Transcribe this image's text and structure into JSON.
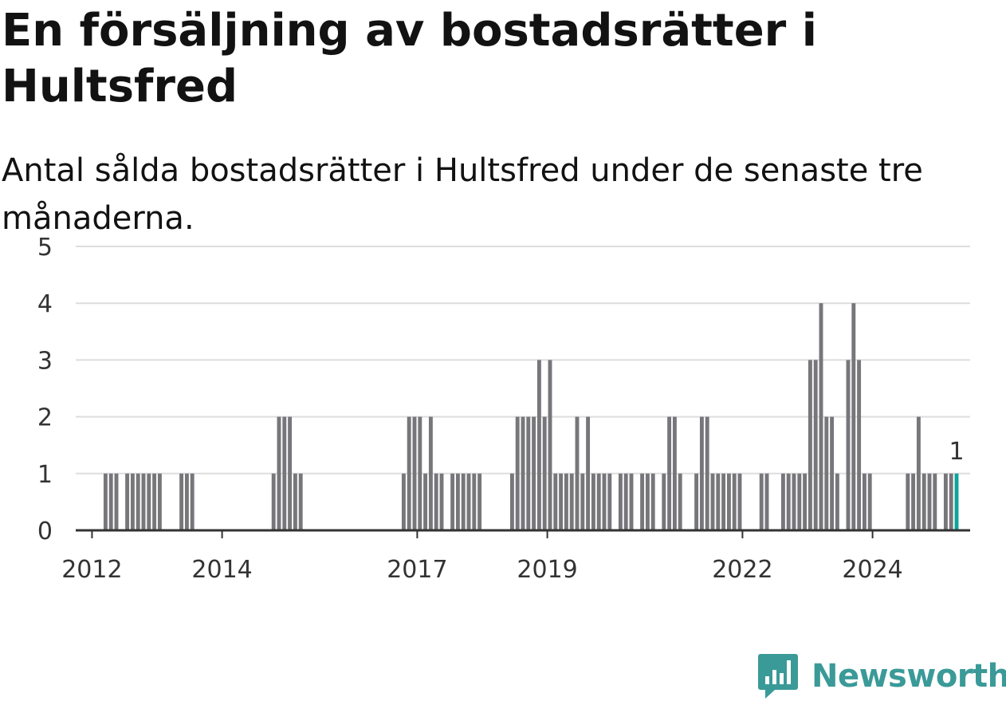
{
  "header": {
    "title": "En försäljning av bostadsrätter i Hultsfred",
    "subtitle": "Antal sålda bostadsrätter i Hultsfred under de senaste tre månaderna."
  },
  "brand": {
    "name": "Newsworthy",
    "color": "#3a9a98",
    "icon": "newsworthy-logo-icon"
  },
  "colors": {
    "bar": "#76767b",
    "highlight": "#0fa39a",
    "grid": "#dddddd",
    "axis": "#333333"
  },
  "chart_data": {
    "type": "bar",
    "title": "En försäljning av bostadsrätter i Hultsfred",
    "subtitle": "Antal sålda bostadsrätter i Hultsfred under de senaste tre månaderna.",
    "xlabel": "",
    "ylabel": "",
    "ylim": [
      0,
      5
    ],
    "yticks": [
      0,
      1,
      2,
      3,
      4,
      5
    ],
    "xticks": [
      "2012",
      "2014",
      "2017",
      "2019",
      "2022",
      "2024"
    ],
    "grid": true,
    "x_start": "2011-10",
    "x_end": "2025-07",
    "x": [
      "2012-03",
      "2012-04",
      "2012-05",
      "2012-07",
      "2012-08",
      "2012-09",
      "2012-10",
      "2012-11",
      "2012-12",
      "2013-01",
      "2013-05",
      "2013-06",
      "2013-07",
      "2014-10",
      "2014-11",
      "2014-12",
      "2015-01",
      "2015-02",
      "2015-03",
      "2016-10",
      "2016-11",
      "2016-12",
      "2017-01",
      "2017-02",
      "2017-03",
      "2017-04",
      "2017-05",
      "2017-07",
      "2017-08",
      "2017-09",
      "2017-10",
      "2017-11",
      "2017-12",
      "2018-06",
      "2018-07",
      "2018-08",
      "2018-09",
      "2018-10",
      "2018-11",
      "2018-12",
      "2019-01",
      "2019-02",
      "2019-03",
      "2019-04",
      "2019-05",
      "2019-06",
      "2019-07",
      "2019-08",
      "2019-09",
      "2019-10",
      "2019-11",
      "2019-12",
      "2020-02",
      "2020-03",
      "2020-04",
      "2020-06",
      "2020-07",
      "2020-08",
      "2020-10",
      "2020-11",
      "2020-12",
      "2021-01",
      "2021-04",
      "2021-05",
      "2021-06",
      "2021-07",
      "2021-08",
      "2021-09",
      "2021-10",
      "2021-11",
      "2021-12",
      "2022-04",
      "2022-05",
      "2022-08",
      "2022-09",
      "2022-10",
      "2022-11",
      "2022-12",
      "2023-01",
      "2023-02",
      "2023-03",
      "2023-04",
      "2023-05",
      "2023-06",
      "2023-08",
      "2023-09",
      "2023-10",
      "2023-11",
      "2023-12",
      "2024-07",
      "2024-08",
      "2024-09",
      "2024-10",
      "2024-11",
      "2024-12",
      "2025-02",
      "2025-03",
      "2025-04"
    ],
    "values": [
      1,
      1,
      1,
      1,
      1,
      1,
      1,
      1,
      1,
      1,
      1,
      1,
      1,
      1,
      2,
      2,
      2,
      1,
      1,
      1,
      2,
      2,
      2,
      1,
      2,
      1,
      1,
      1,
      1,
      1,
      1,
      1,
      1,
      1,
      2,
      2,
      2,
      2,
      3,
      2,
      3,
      1,
      1,
      1,
      1,
      2,
      1,
      2,
      1,
      1,
      1,
      1,
      1,
      1,
      1,
      1,
      1,
      1,
      1,
      2,
      2,
      1,
      1,
      2,
      2,
      1,
      1,
      1,
      1,
      1,
      1,
      1,
      1,
      1,
      1,
      1,
      1,
      1,
      3,
      3,
      4,
      2,
      2,
      1,
      3,
      4,
      3,
      1,
      1,
      1,
      1,
      2,
      1,
      1,
      1,
      1,
      1,
      1
    ],
    "highlight": {
      "x": "2025-04",
      "value": 1,
      "label": "1"
    }
  }
}
